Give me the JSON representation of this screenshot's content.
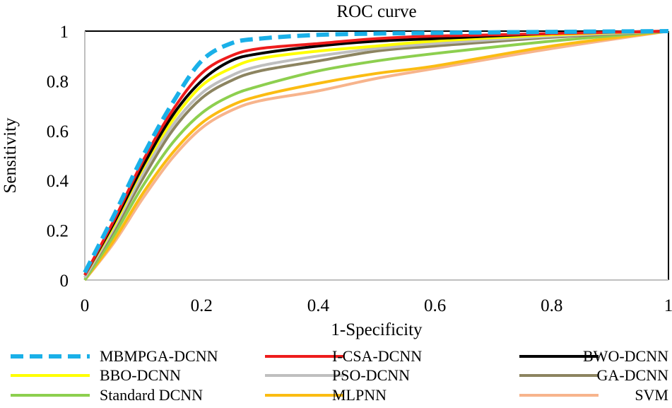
{
  "chart_data": {
    "type": "line",
    "title": "ROC curve",
    "xlabel": "1-Specificity",
    "ylabel": "Sensitivity",
    "xlim": [
      0,
      1
    ],
    "ylim": [
      0,
      1
    ],
    "x_ticks": [
      "0",
      "0.2",
      "0.4",
      "0.6",
      "0.8",
      "1"
    ],
    "y_ticks": [
      "0",
      "0.2",
      "0.4",
      "0.6",
      "0.8",
      "1"
    ],
    "grid": false,
    "legend_position": "bottom",
    "series": [
      {
        "name": "MBMPGA-DCNN",
        "color": "#1ab0e8",
        "dashed": true,
        "x": [
          0,
          0.05,
          0.1,
          0.15,
          0.2,
          0.25,
          0.3,
          0.4,
          0.5,
          0.6,
          0.8,
          1.0
        ],
        "y": [
          0.03,
          0.26,
          0.5,
          0.71,
          0.88,
          0.95,
          0.97,
          0.985,
          0.99,
          0.993,
          0.997,
          1.0
        ]
      },
      {
        "name": "I-CSA-DCNN",
        "color": "#ee1c1c",
        "dashed": false,
        "x": [
          0,
          0.05,
          0.1,
          0.15,
          0.2,
          0.25,
          0.3,
          0.4,
          0.5,
          0.6,
          0.8,
          1.0
        ],
        "y": [
          0.02,
          0.24,
          0.48,
          0.68,
          0.83,
          0.9,
          0.93,
          0.95,
          0.97,
          0.98,
          0.99,
          1.0
        ]
      },
      {
        "name": "BWO-DCNN",
        "color": "#000000",
        "dashed": false,
        "x": [
          0,
          0.05,
          0.1,
          0.15,
          0.2,
          0.25,
          0.3,
          0.4,
          0.5,
          0.6,
          0.8,
          1.0
        ],
        "y": [
          0.02,
          0.23,
          0.46,
          0.66,
          0.8,
          0.88,
          0.91,
          0.94,
          0.96,
          0.97,
          0.99,
          1.0
        ]
      },
      {
        "name": "BBO-DCNN",
        "color": "#ffff00",
        "dashed": false,
        "x": [
          0,
          0.05,
          0.1,
          0.15,
          0.2,
          0.25,
          0.3,
          0.4,
          0.5,
          0.6,
          0.8,
          1.0
        ],
        "y": [
          0.02,
          0.22,
          0.45,
          0.64,
          0.78,
          0.85,
          0.89,
          0.92,
          0.94,
          0.96,
          0.985,
          1.0
        ]
      },
      {
        "name": "PSO-DCNN",
        "color": "#bfbfbf",
        "dashed": false,
        "x": [
          0,
          0.05,
          0.1,
          0.15,
          0.2,
          0.25,
          0.3,
          0.4,
          0.5,
          0.6,
          0.8,
          1.0
        ],
        "y": [
          0.01,
          0.21,
          0.43,
          0.62,
          0.75,
          0.82,
          0.86,
          0.9,
          0.93,
          0.95,
          0.98,
          1.0
        ]
      },
      {
        "name": "GA-DCNN",
        "color": "#8c8460",
        "dashed": false,
        "x": [
          0,
          0.05,
          0.1,
          0.15,
          0.2,
          0.25,
          0.3,
          0.4,
          0.5,
          0.6,
          0.8,
          1.0
        ],
        "y": [
          0.01,
          0.2,
          0.41,
          0.6,
          0.73,
          0.8,
          0.84,
          0.88,
          0.92,
          0.94,
          0.975,
          1.0
        ]
      },
      {
        "name": "Standard DCNN",
        "color": "#8dcf4f",
        "dashed": false,
        "x": [
          0,
          0.05,
          0.1,
          0.15,
          0.2,
          0.25,
          0.3,
          0.4,
          0.5,
          0.6,
          0.8,
          1.0
        ],
        "y": [
          0.0,
          0.18,
          0.38,
          0.55,
          0.67,
          0.74,
          0.78,
          0.84,
          0.88,
          0.91,
          0.96,
          1.0
        ]
      },
      {
        "name": "MLPNN",
        "color": "#fbbc12",
        "dashed": false,
        "x": [
          0,
          0.05,
          0.1,
          0.15,
          0.2,
          0.25,
          0.3,
          0.4,
          0.5,
          0.6,
          0.8,
          1.0
        ],
        "y": [
          0.0,
          0.16,
          0.35,
          0.51,
          0.63,
          0.7,
          0.74,
          0.79,
          0.83,
          0.86,
          0.94,
          1.0
        ]
      },
      {
        "name": "SVM",
        "color": "#f7b48c",
        "dashed": false,
        "x": [
          0,
          0.05,
          0.1,
          0.15,
          0.2,
          0.25,
          0.3,
          0.4,
          0.5,
          0.6,
          0.8,
          1.0
        ],
        "y": [
          0.0,
          0.15,
          0.33,
          0.49,
          0.61,
          0.68,
          0.72,
          0.76,
          0.81,
          0.85,
          0.93,
          1.0
        ]
      }
    ]
  }
}
